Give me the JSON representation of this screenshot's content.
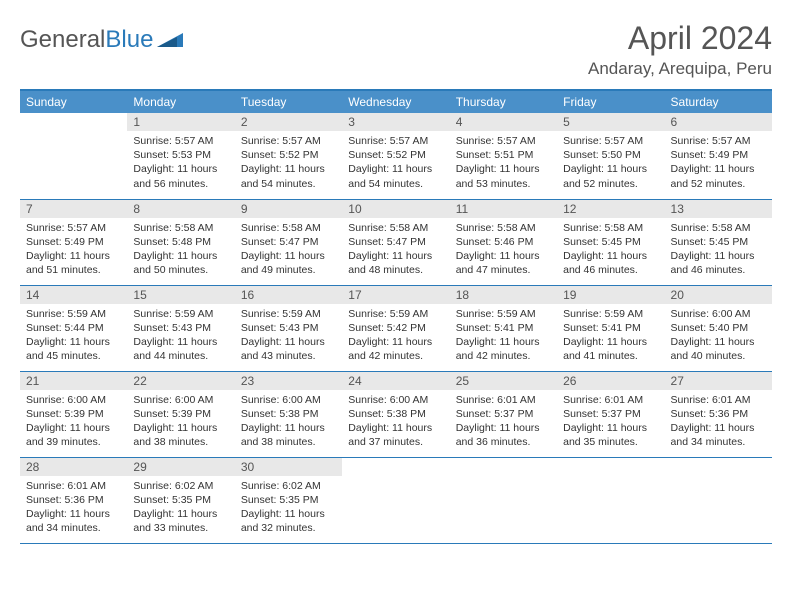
{
  "logo": {
    "text1": "General",
    "text2": "Blue"
  },
  "title": "April 2024",
  "location": "Andaray, Arequipa, Peru",
  "colors": {
    "header_bg": "#4a90c9",
    "border": "#2a7ab9",
    "daynum_bg": "#e8e8e8",
    "text": "#333333",
    "muted": "#555555"
  },
  "weekdays": [
    "Sunday",
    "Monday",
    "Tuesday",
    "Wednesday",
    "Thursday",
    "Friday",
    "Saturday"
  ],
  "weeks": [
    [
      {
        "n": "",
        "sr": "",
        "ss": "",
        "dl": ""
      },
      {
        "n": "1",
        "sr": "Sunrise: 5:57 AM",
        "ss": "Sunset: 5:53 PM",
        "dl": "Daylight: 11 hours and 56 minutes."
      },
      {
        "n": "2",
        "sr": "Sunrise: 5:57 AM",
        "ss": "Sunset: 5:52 PM",
        "dl": "Daylight: 11 hours and 54 minutes."
      },
      {
        "n": "3",
        "sr": "Sunrise: 5:57 AM",
        "ss": "Sunset: 5:52 PM",
        "dl": "Daylight: 11 hours and 54 minutes."
      },
      {
        "n": "4",
        "sr": "Sunrise: 5:57 AM",
        "ss": "Sunset: 5:51 PM",
        "dl": "Daylight: 11 hours and 53 minutes."
      },
      {
        "n": "5",
        "sr": "Sunrise: 5:57 AM",
        "ss": "Sunset: 5:50 PM",
        "dl": "Daylight: 11 hours and 52 minutes."
      },
      {
        "n": "6",
        "sr": "Sunrise: 5:57 AM",
        "ss": "Sunset: 5:49 PM",
        "dl": "Daylight: 11 hours and 52 minutes."
      }
    ],
    [
      {
        "n": "7",
        "sr": "Sunrise: 5:57 AM",
        "ss": "Sunset: 5:49 PM",
        "dl": "Daylight: 11 hours and 51 minutes."
      },
      {
        "n": "8",
        "sr": "Sunrise: 5:58 AM",
        "ss": "Sunset: 5:48 PM",
        "dl": "Daylight: 11 hours and 50 minutes."
      },
      {
        "n": "9",
        "sr": "Sunrise: 5:58 AM",
        "ss": "Sunset: 5:47 PM",
        "dl": "Daylight: 11 hours and 49 minutes."
      },
      {
        "n": "10",
        "sr": "Sunrise: 5:58 AM",
        "ss": "Sunset: 5:47 PM",
        "dl": "Daylight: 11 hours and 48 minutes."
      },
      {
        "n": "11",
        "sr": "Sunrise: 5:58 AM",
        "ss": "Sunset: 5:46 PM",
        "dl": "Daylight: 11 hours and 47 minutes."
      },
      {
        "n": "12",
        "sr": "Sunrise: 5:58 AM",
        "ss": "Sunset: 5:45 PM",
        "dl": "Daylight: 11 hours and 46 minutes."
      },
      {
        "n": "13",
        "sr": "Sunrise: 5:58 AM",
        "ss": "Sunset: 5:45 PM",
        "dl": "Daylight: 11 hours and 46 minutes."
      }
    ],
    [
      {
        "n": "14",
        "sr": "Sunrise: 5:59 AM",
        "ss": "Sunset: 5:44 PM",
        "dl": "Daylight: 11 hours and 45 minutes."
      },
      {
        "n": "15",
        "sr": "Sunrise: 5:59 AM",
        "ss": "Sunset: 5:43 PM",
        "dl": "Daylight: 11 hours and 44 minutes."
      },
      {
        "n": "16",
        "sr": "Sunrise: 5:59 AM",
        "ss": "Sunset: 5:43 PM",
        "dl": "Daylight: 11 hours and 43 minutes."
      },
      {
        "n": "17",
        "sr": "Sunrise: 5:59 AM",
        "ss": "Sunset: 5:42 PM",
        "dl": "Daylight: 11 hours and 42 minutes."
      },
      {
        "n": "18",
        "sr": "Sunrise: 5:59 AM",
        "ss": "Sunset: 5:41 PM",
        "dl": "Daylight: 11 hours and 42 minutes."
      },
      {
        "n": "19",
        "sr": "Sunrise: 5:59 AM",
        "ss": "Sunset: 5:41 PM",
        "dl": "Daylight: 11 hours and 41 minutes."
      },
      {
        "n": "20",
        "sr": "Sunrise: 6:00 AM",
        "ss": "Sunset: 5:40 PM",
        "dl": "Daylight: 11 hours and 40 minutes."
      }
    ],
    [
      {
        "n": "21",
        "sr": "Sunrise: 6:00 AM",
        "ss": "Sunset: 5:39 PM",
        "dl": "Daylight: 11 hours and 39 minutes."
      },
      {
        "n": "22",
        "sr": "Sunrise: 6:00 AM",
        "ss": "Sunset: 5:39 PM",
        "dl": "Daylight: 11 hours and 38 minutes."
      },
      {
        "n": "23",
        "sr": "Sunrise: 6:00 AM",
        "ss": "Sunset: 5:38 PM",
        "dl": "Daylight: 11 hours and 38 minutes."
      },
      {
        "n": "24",
        "sr": "Sunrise: 6:00 AM",
        "ss": "Sunset: 5:38 PM",
        "dl": "Daylight: 11 hours and 37 minutes."
      },
      {
        "n": "25",
        "sr": "Sunrise: 6:01 AM",
        "ss": "Sunset: 5:37 PM",
        "dl": "Daylight: 11 hours and 36 minutes."
      },
      {
        "n": "26",
        "sr": "Sunrise: 6:01 AM",
        "ss": "Sunset: 5:37 PM",
        "dl": "Daylight: 11 hours and 35 minutes."
      },
      {
        "n": "27",
        "sr": "Sunrise: 6:01 AM",
        "ss": "Sunset: 5:36 PM",
        "dl": "Daylight: 11 hours and 34 minutes."
      }
    ],
    [
      {
        "n": "28",
        "sr": "Sunrise: 6:01 AM",
        "ss": "Sunset: 5:36 PM",
        "dl": "Daylight: 11 hours and 34 minutes."
      },
      {
        "n": "29",
        "sr": "Sunrise: 6:02 AM",
        "ss": "Sunset: 5:35 PM",
        "dl": "Daylight: 11 hours and 33 minutes."
      },
      {
        "n": "30",
        "sr": "Sunrise: 6:02 AM",
        "ss": "Sunset: 5:35 PM",
        "dl": "Daylight: 11 hours and 32 minutes."
      },
      {
        "n": "",
        "sr": "",
        "ss": "",
        "dl": ""
      },
      {
        "n": "",
        "sr": "",
        "ss": "",
        "dl": ""
      },
      {
        "n": "",
        "sr": "",
        "ss": "",
        "dl": ""
      },
      {
        "n": "",
        "sr": "",
        "ss": "",
        "dl": ""
      }
    ]
  ]
}
